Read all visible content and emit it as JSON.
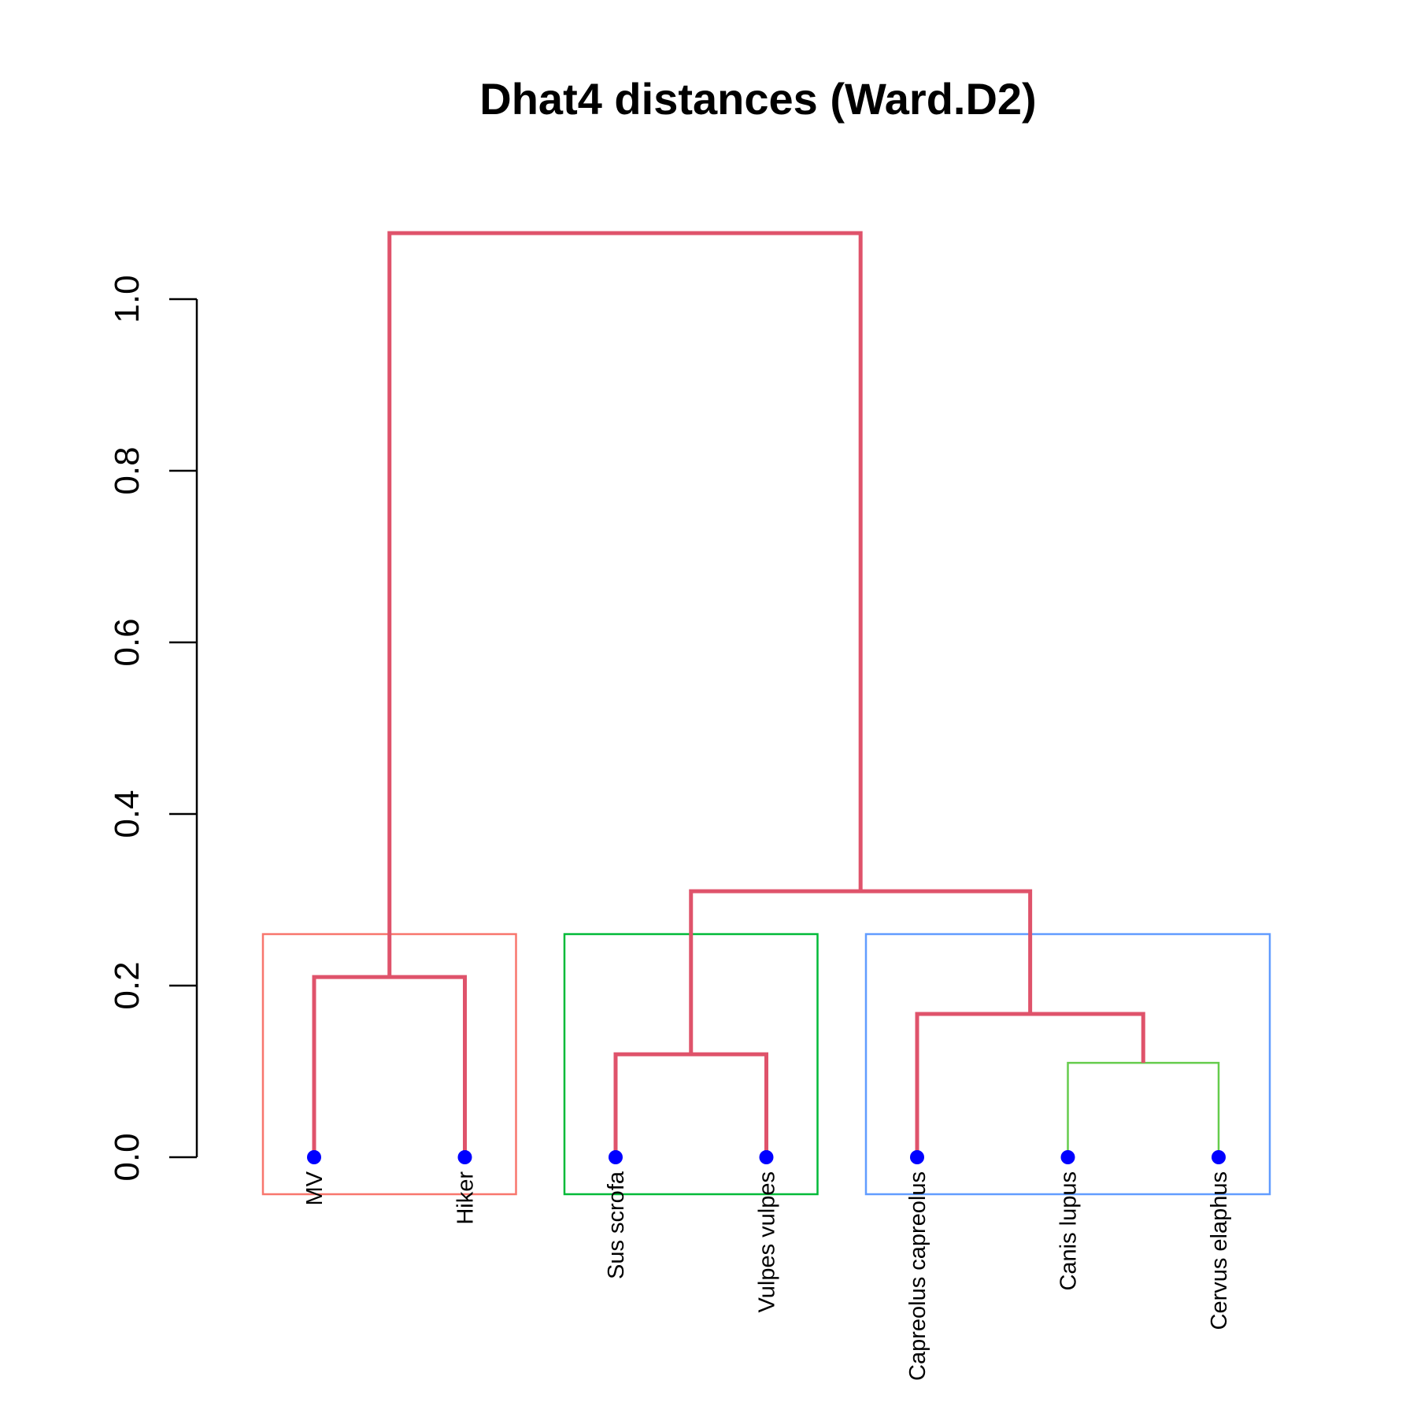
{
  "chart_data": {
    "type": "dendrogram",
    "title": "Dhat4 distances (Ward.D2)",
    "xlabel": "",
    "ylabel": "",
    "ylim": [
      0,
      1.0
    ],
    "y_ticks": [
      "0.0",
      "0.2",
      "0.4",
      "0.6",
      "0.8",
      "1.0"
    ],
    "leaves": [
      "MV",
      "Hiker",
      "Sus scrofa",
      "Vulpes vulpes",
      "Capreolus capreolus",
      "Canis lupus",
      "Cervus elaphus"
    ],
    "merges": [
      {
        "children": [
          "leaf:0",
          "leaf:1"
        ],
        "height": 0.21
      },
      {
        "children": [
          "leaf:2",
          "leaf:3"
        ],
        "height": 0.12
      },
      {
        "children": [
          "leaf:5",
          "leaf:6"
        ],
        "height": 0.11
      },
      {
        "children": [
          "leaf:4",
          "merge:2"
        ],
        "height": 0.167
      },
      {
        "children": [
          "merge:1",
          "merge:3"
        ],
        "height": 0.31
      },
      {
        "children": [
          "merge:0",
          "merge:4"
        ],
        "height": 1.077
      }
    ],
    "highlighted_merges": [
      0,
      1,
      3,
      4,
      5
    ],
    "clusters": [
      {
        "leaves": [
          0,
          1
        ],
        "color": "#F8766D"
      },
      {
        "leaves": [
          2,
          3
        ],
        "color": "#00BA38"
      },
      {
        "leaves": [
          4,
          5,
          6
        ],
        "color": "#619CFF"
      }
    ],
    "cluster_box_height": 0.26,
    "grid": false,
    "legend": "none"
  },
  "colors": {
    "branch": "#66CC4D",
    "highlight": "#DF536B",
    "leaf_point": "#0000FF",
    "axis": "#000000"
  }
}
